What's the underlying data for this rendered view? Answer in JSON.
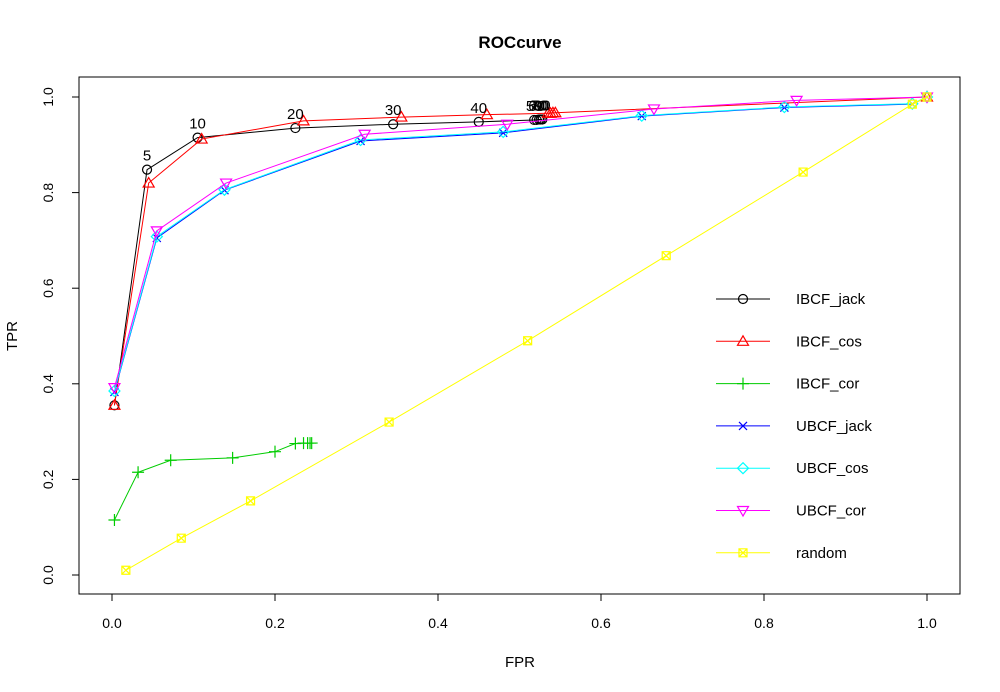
{
  "chart_data": {
    "type": "line",
    "title": "ROCcurve",
    "xlabel": "FPR",
    "ylabel": "TPR",
    "xlim": [
      0,
      1
    ],
    "ylim": [
      0,
      1
    ],
    "xticks": [
      0.0,
      0.2,
      0.4,
      0.6,
      0.8,
      1.0
    ],
    "xtick_labels": [
      "0.0",
      "0.2",
      "0.4",
      "0.6",
      "0.8",
      "1.0"
    ],
    "yticks": [
      0.0,
      0.2,
      0.4,
      0.6,
      0.8,
      1.0
    ],
    "ytick_labels": [
      "0.0",
      "0.2",
      "0.4",
      "0.6",
      "0.8",
      "1.0"
    ],
    "grid": false,
    "legend_position": "right",
    "series": [
      {
        "name": "IBCF_jack",
        "color": "#000000",
        "marker": "circle",
        "x": [
          0.003,
          0.043,
          0.105,
          0.225,
          0.345,
          0.45,
          0.518,
          0.521,
          0.524,
          0.526,
          0.528
        ],
        "y": [
          0.355,
          0.848,
          0.915,
          0.935,
          0.943,
          0.948,
          0.952,
          0.952,
          0.953,
          0.953,
          0.953
        ]
      },
      {
        "name": "IBCF_cos",
        "color": "#ff0000",
        "marker": "triangle-up",
        "x": [
          0.003,
          0.045,
          0.11,
          0.235,
          0.355,
          0.46,
          0.535,
          0.538,
          0.541,
          0.544,
          1.0
        ],
        "y": [
          0.355,
          0.82,
          0.912,
          0.95,
          0.958,
          0.963,
          0.966,
          0.966,
          0.967,
          0.967,
          1.0
        ]
      },
      {
        "name": "IBCF_cor",
        "color": "#00cc00",
        "marker": "plus",
        "x": [
          0.003,
          0.032,
          0.072,
          0.148,
          0.2,
          0.225,
          0.235,
          0.24,
          0.243,
          0.245
        ],
        "y": [
          0.115,
          0.215,
          0.24,
          0.245,
          0.258,
          0.275,
          0.276,
          0.276,
          0.276,
          0.276
        ]
      },
      {
        "name": "UBCF_jack",
        "color": "#0000ff",
        "marker": "x",
        "x": [
          0.003,
          0.055,
          0.138,
          0.305,
          0.48,
          0.65,
          0.825,
          0.982,
          1.0
        ],
        "y": [
          0.383,
          0.705,
          0.805,
          0.908,
          0.925,
          0.96,
          0.978,
          0.985,
          1.0
        ]
      },
      {
        "name": "UBCF_cos",
        "color": "#00ffff",
        "marker": "diamond",
        "x": [
          0.003,
          0.055,
          0.138,
          0.305,
          0.48,
          0.65,
          0.825,
          0.982,
          1.0
        ],
        "y": [
          0.385,
          0.708,
          0.806,
          0.91,
          0.927,
          0.961,
          0.979,
          0.986,
          1.0
        ]
      },
      {
        "name": "UBCF_cor",
        "color": "#ff00ff",
        "marker": "triangle-down",
        "x": [
          0.003,
          0.055,
          0.14,
          0.31,
          0.485,
          0.665,
          0.84,
          1.0
        ],
        "y": [
          0.392,
          0.72,
          0.82,
          0.922,
          0.943,
          0.975,
          0.993,
          1.0
        ]
      },
      {
        "name": "random",
        "color": "#ffff00",
        "marker": "square-x",
        "x": [
          0.017,
          0.085,
          0.17,
          0.34,
          0.51,
          0.68,
          0.848,
          0.982,
          1.0
        ],
        "y": [
          0.01,
          0.077,
          0.155,
          0.32,
          0.49,
          0.668,
          0.843,
          0.985,
          1.0
        ]
      }
    ],
    "point_labels": [
      {
        "text": "5",
        "x": 0.043,
        "y": 0.848
      },
      {
        "text": "10",
        "x": 0.105,
        "y": 0.915
      },
      {
        "text": "20",
        "x": 0.225,
        "y": 0.935
      },
      {
        "text": "30",
        "x": 0.345,
        "y": 0.943
      },
      {
        "text": "40",
        "x": 0.45,
        "y": 0.948
      },
      {
        "text": "50",
        "x": 0.518,
        "y": 0.952
      },
      {
        "text": "60",
        "x": 0.521,
        "y": 0.952
      },
      {
        "text": "70",
        "x": 0.524,
        "y": 0.953
      },
      {
        "text": "80",
        "x": 0.526,
        "y": 0.953
      },
      {
        "text": "90",
        "x": 0.528,
        "y": 0.953
      }
    ]
  }
}
